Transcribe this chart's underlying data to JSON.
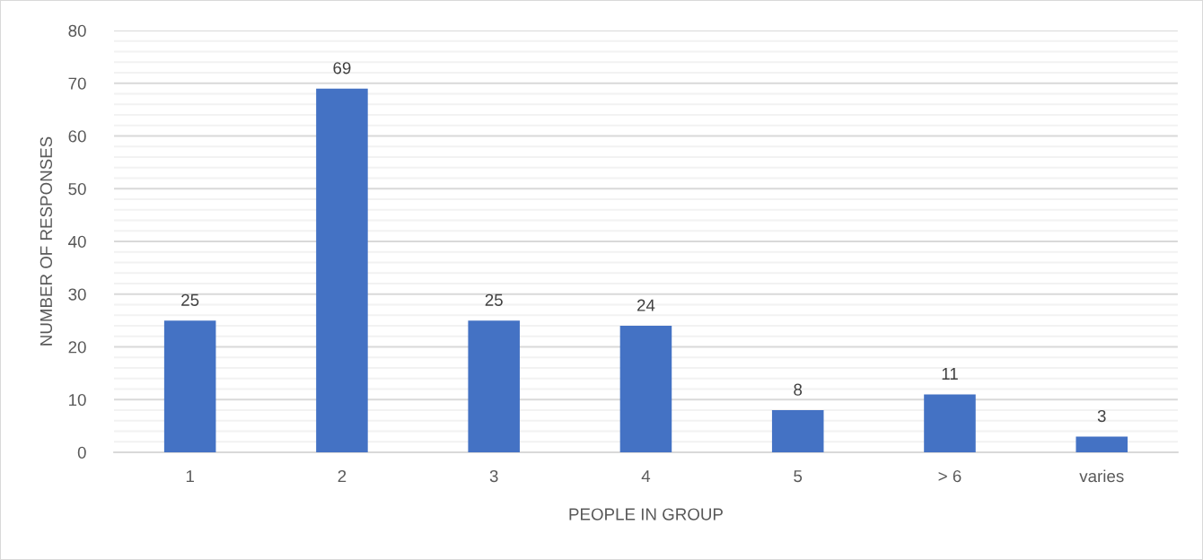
{
  "chart_data": {
    "type": "bar",
    "xlabel": "PEOPLE IN GROUP",
    "ylabel": "NUMBER OF RESPONSES",
    "categories": [
      "1",
      "2",
      "3",
      "4",
      "5",
      "> 6",
      "varies"
    ],
    "values": [
      25,
      69,
      25,
      24,
      8,
      11,
      3
    ],
    "color": "#4472c4",
    "ylim": [
      0,
      80
    ],
    "yticks": [
      0,
      {
        "value": 2,
        "label": null
      },
      {
        "value": 4,
        "label": null
      },
      {
        "value": 6,
        "label": null
      },
      {
        "value": 8,
        "label": null
      },
      10,
      {
        "value": 12,
        "label": null
      },
      {
        "value": 14,
        "label": null
      },
      {
        "value": 16,
        "label": null
      },
      {
        "value": 18,
        "label": null
      },
      20,
      {
        "value": 22,
        "label": null
      },
      {
        "value": 24,
        "label": null
      },
      {
        "value": 26,
        "label": null
      },
      {
        "value": 28,
        "label": null
      },
      30,
      {
        "value": 32,
        "label": null
      },
      {
        "value": 34,
        "label": null
      },
      {
        "value": 36,
        "label": null
      },
      {
        "value": 38,
        "label": null
      },
      40,
      {
        "value": 42,
        "label": null
      },
      {
        "value": 44,
        "label": null
      },
      {
        "value": 46,
        "label": null
      },
      {
        "value": 48,
        "label": null
      },
      50,
      {
        "value": 52,
        "label": null
      },
      {
        "value": 54,
        "label": null
      },
      {
        "value": 56,
        "label": null
      },
      {
        "value": 58,
        "label": null
      },
      60,
      {
        "value": 62,
        "label": null
      },
      {
        "value": 64,
        "label": null
      },
      {
        "value": 66,
        "label": null
      },
      {
        "value": 68,
        "label": null
      },
      70,
      {
        "value": 72,
        "label": null
      },
      {
        "value": 74,
        "label": null
      },
      {
        "value": 76,
        "label": null
      },
      {
        "value": 78,
        "label": null
      },
      80
    ],
    "grid": "y",
    "data_labels": true
  }
}
